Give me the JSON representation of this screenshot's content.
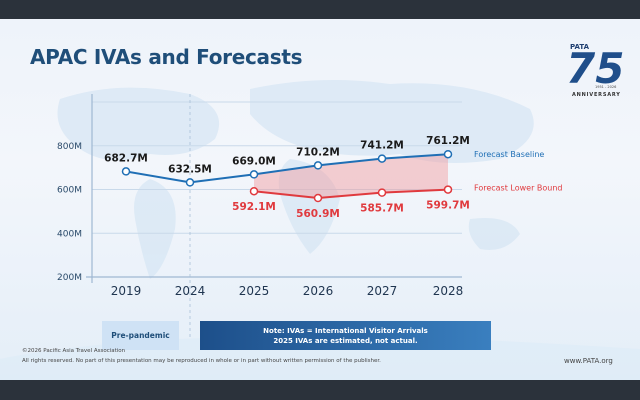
{
  "slide": {
    "title": "APAC IVAs and Forecasts",
    "logo": {
      "brand": "PATA",
      "number": "75",
      "years": "1951 - 2026",
      "label": "ANNIVERSARY"
    },
    "footer": {
      "copyright": "©2026 Pacific Asia Travel Association",
      "rights": "All rights reserved. No part of this presentation may be reproduced in whole or in part without written permission of the publisher.",
      "url": "www.PATA.org"
    },
    "pre_pandemic_label": "Pre-pandemic",
    "note_line1": "Note: IVAs = International Visitor Arrivals",
    "note_line2": "2025 IVAs are estimated, not actual.",
    "colors": {
      "baseline": "#1f6fb5",
      "lower": "#e03a3e",
      "title": "#1f4e79",
      "note_bg": "#1d4f8a"
    }
  },
  "chart_data": {
    "type": "line",
    "title": "APAC IVAs and Forecasts",
    "xlabel": "",
    "ylabel": "",
    "categories": [
      "2019",
      "2024",
      "2025",
      "2026",
      "2027",
      "2028"
    ],
    "yticks": [
      "200M",
      "400M",
      "600M",
      "800M"
    ],
    "ytick_values": [
      200,
      400,
      600,
      800
    ],
    "ylim": [
      200,
      1000
    ],
    "grid": true,
    "series": [
      {
        "name": "Forecast Baseline",
        "color": "#1f6fb5",
        "values": [
          682.7,
          632.5,
          669.0,
          710.2,
          741.2,
          761.2
        ],
        "labels": [
          "682.7M",
          "632.5M",
          "669.0M",
          "710.2M",
          "741.2M",
          "761.2M"
        ]
      },
      {
        "name": "Forecast Lower Bound",
        "color": "#e03a3e",
        "values": [
          null,
          null,
          592.1,
          560.9,
          585.7,
          599.7
        ],
        "labels": [
          "",
          "",
          "592.1M",
          "560.9M",
          "585.7M",
          "599.7M"
        ]
      }
    ],
    "legend": "right, inline labels"
  }
}
